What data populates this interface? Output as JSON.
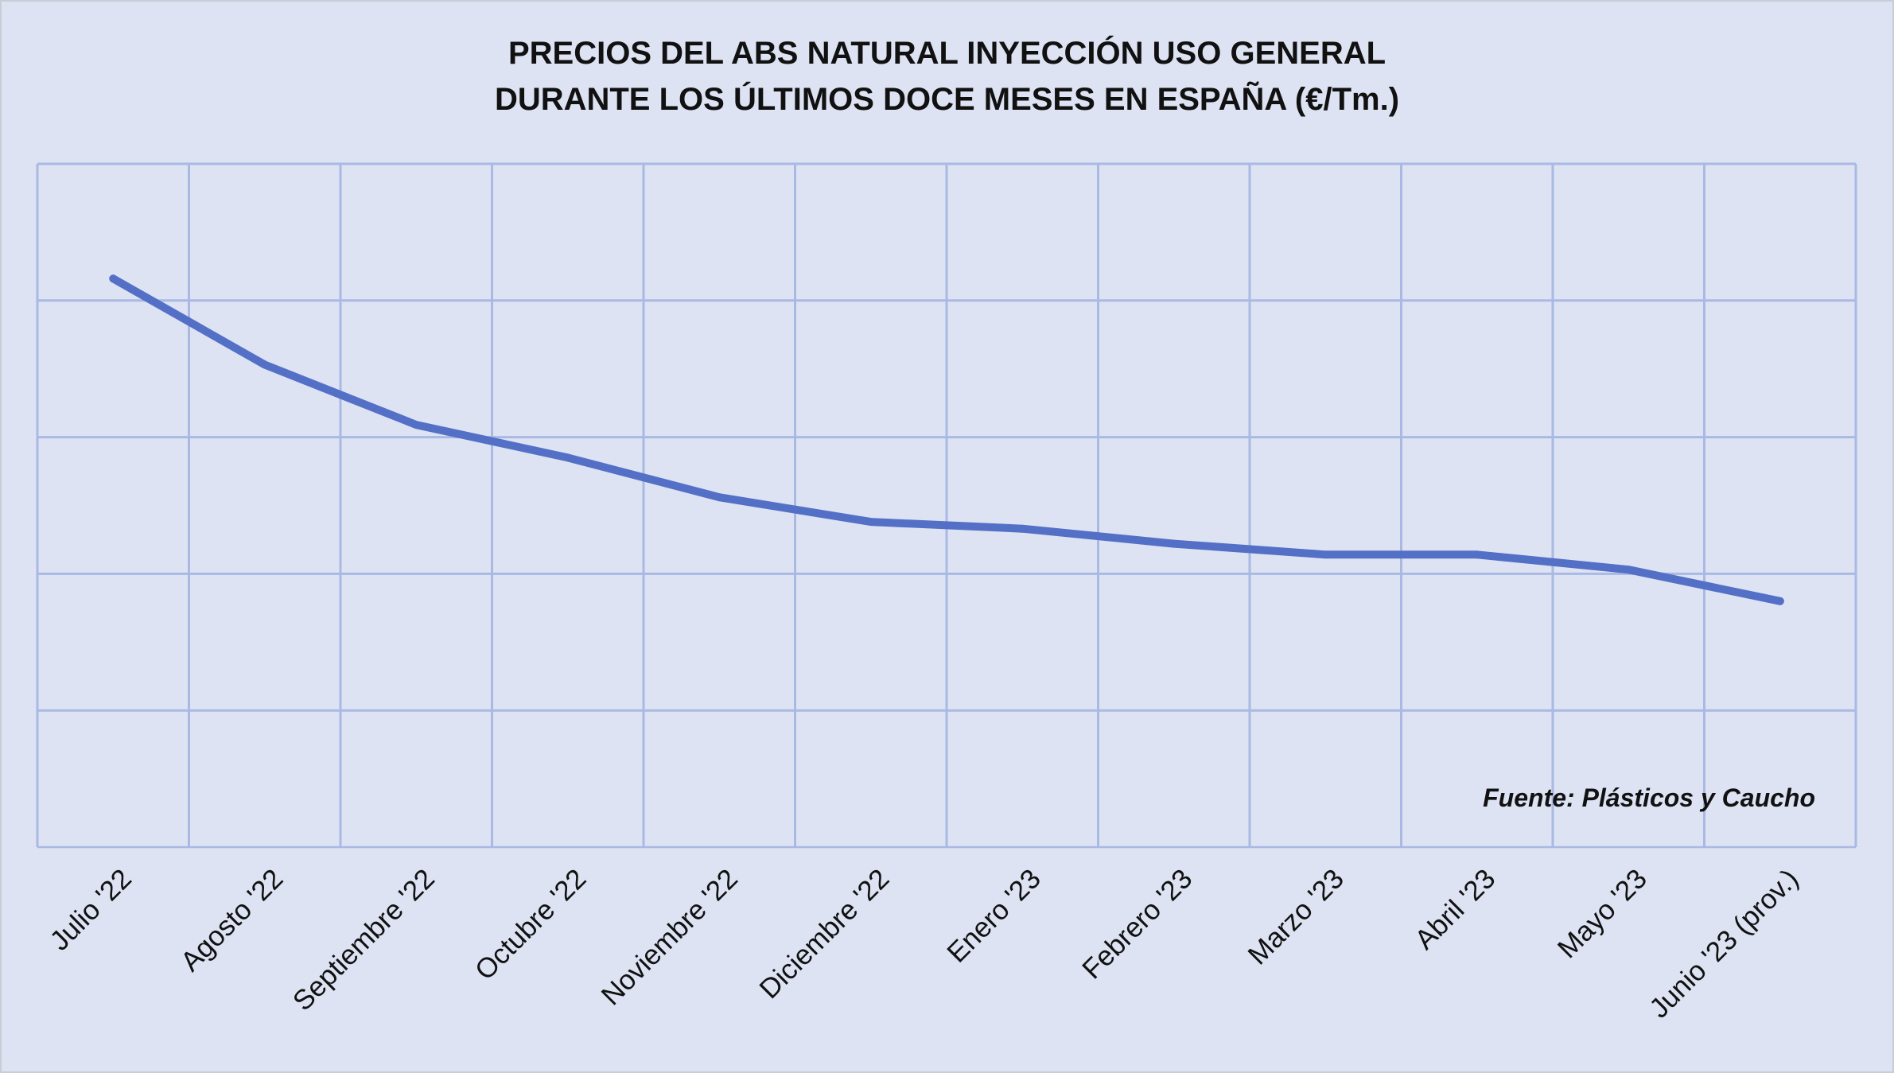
{
  "chart_data": {
    "type": "line",
    "title_lines": [
      "PRECIOS DEL ABS NATURAL INYECCIÓN  USO GENERAL",
      "DURANTE LOS ÚLTIMOS DOCE MESES EN ESPAÑA (€/Tm.)"
    ],
    "categories": [
      "Julio '22",
      "Agosto '22",
      "Septiembre '22",
      "Octubre '22",
      "Noviembre '22",
      "Diciembre '22",
      "Enero '23",
      "Febrero '23",
      "Marzo '23",
      "Abril '23",
      "Mayo '23",
      "Junio '23 (prov.)"
    ],
    "series": [
      {
        "values": [
          4.16,
          3.53,
          3.09,
          2.85,
          2.56,
          2.38,
          2.33,
          2.22,
          2.14,
          2.14,
          2.03,
          1.8
        ]
      }
    ],
    "ylim": [
      0,
      5
    ],
    "y_gridlines": 5,
    "y_tick_labels_shown": false,
    "xlabel": "",
    "ylabel": "",
    "grid": true,
    "line_color": "#5470c6",
    "grid_color": "#a9b9e3",
    "background_color": "#dde3f3",
    "source_note": "Fuente: Plásticos y Caucho"
  }
}
